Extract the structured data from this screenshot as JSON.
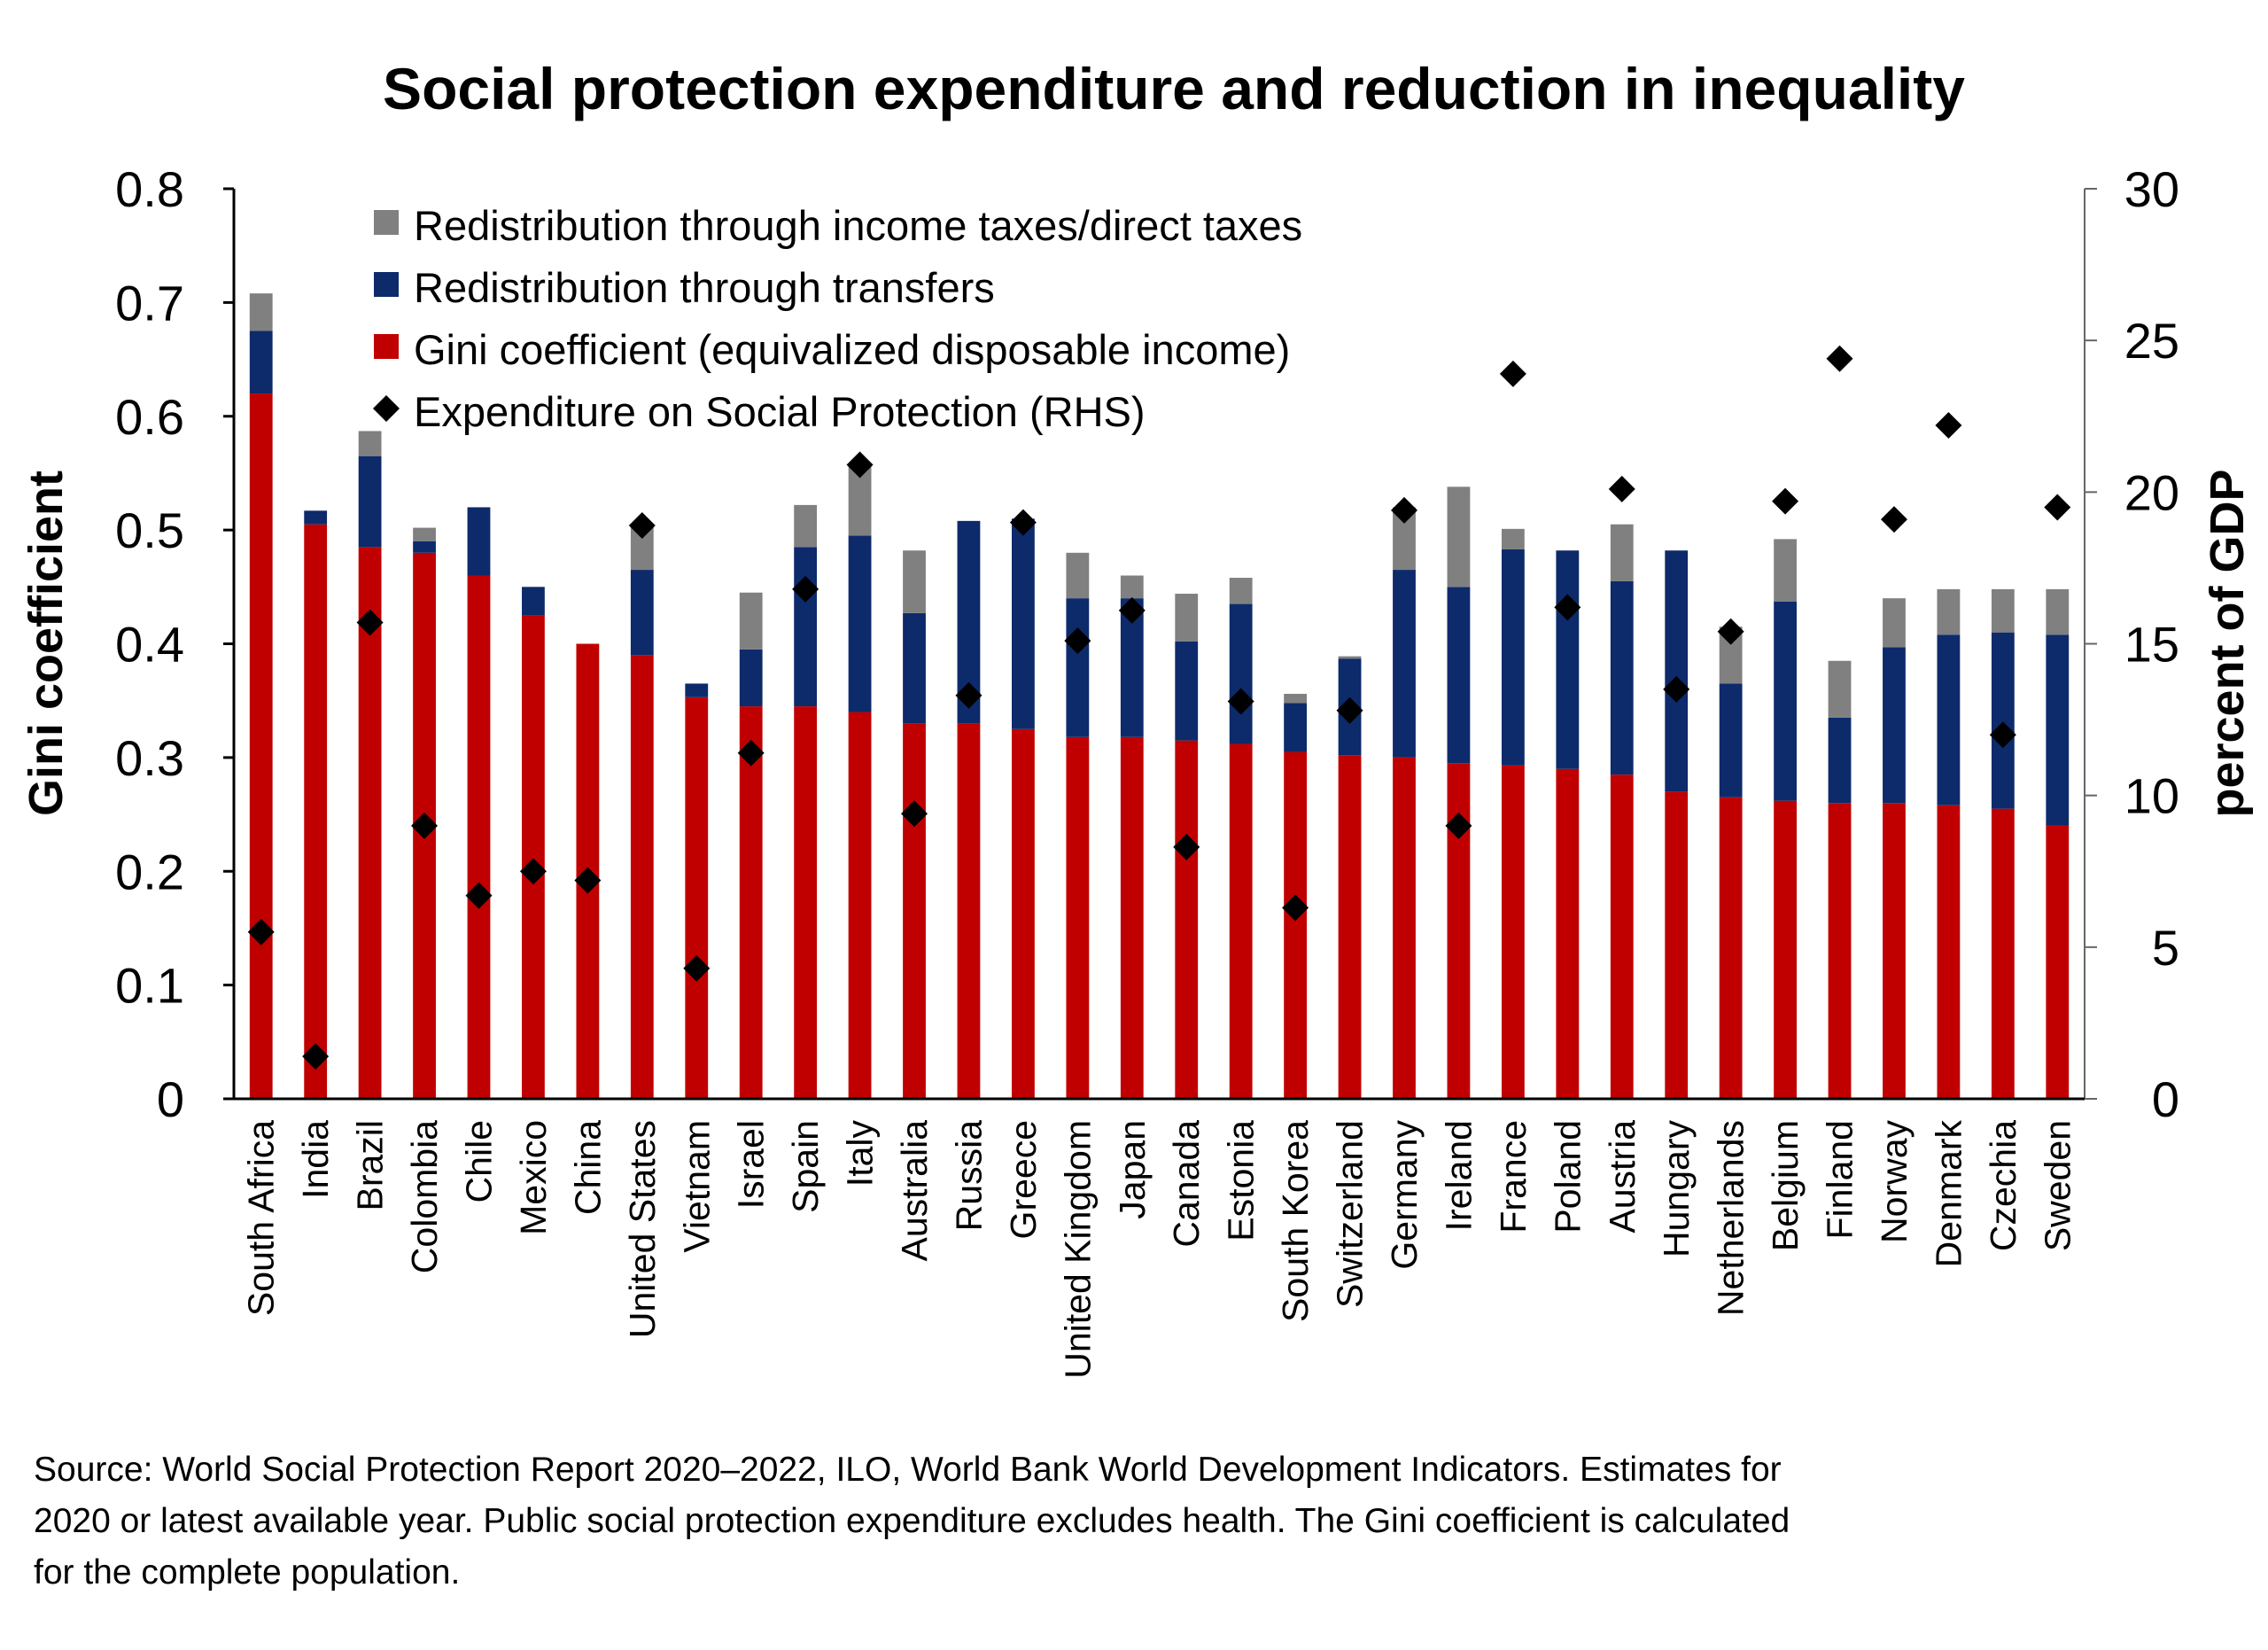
{
  "chart_data": {
    "type": "bar",
    "title": "Social protection expenditure and reduction in inequality",
    "ylabel": "Gini coefficient",
    "y2label": "percent of GDP",
    "ylim": [
      0,
      0.8
    ],
    "y_ticks": [
      "0",
      "0.1",
      "0.2",
      "0.3",
      "0.4",
      "0.5",
      "0.6",
      "0.7",
      "0.8"
    ],
    "y2lim": [
      0,
      30
    ],
    "y2_ticks": [
      "0",
      "5",
      "10",
      "15",
      "20",
      "25",
      "30"
    ],
    "legend_position": "top",
    "grid": false,
    "stacked": true,
    "categories": [
      "South Africa",
      "India",
      "Brazil",
      "Colombia",
      "Chile",
      "Mexico",
      "China",
      "United States",
      "Vietnam",
      "Israel",
      "Spain",
      "Italy",
      "Australia",
      "Russia",
      "Greece",
      "United Kingdom",
      "Japan",
      "Canada",
      "Estonia",
      "South Korea",
      "Switzerland",
      "Germany",
      "Ireland",
      "France",
      "Poland",
      "Austria",
      "Hungary",
      "Netherlands",
      "Belgium",
      "Finland",
      "Norway",
      "Denmark",
      "Czechia",
      "Sweden"
    ],
    "series": [
      {
        "name": "Gini coefficient (equivalized disposable income)",
        "kind": "bar",
        "color": "#c00000",
        "values": [
          0.62,
          0.505,
          0.485,
          0.48,
          0.46,
          0.425,
          0.4,
          0.39,
          0.353,
          0.345,
          0.345,
          0.34,
          0.33,
          0.33,
          0.325,
          0.318,
          0.318,
          0.315,
          0.312,
          0.305,
          0.302,
          0.3,
          0.295,
          0.293,
          0.29,
          0.285,
          0.27,
          0.265,
          0.262,
          0.26,
          0.26,
          0.258,
          0.255,
          0.24
        ]
      },
      {
        "name": "Redistribution through transfers",
        "kind": "bar",
        "color": "#0d2a6b",
        "values": [
          0.055,
          0.012,
          0.08,
          0.01,
          0.06,
          0.025,
          0,
          0.075,
          0.012,
          0.05,
          0.14,
          0.155,
          0.097,
          0.178,
          0.185,
          0.122,
          0.122,
          0.087,
          0.123,
          0.043,
          0.085,
          0.165,
          0.155,
          0.19,
          0.192,
          0.17,
          0.212,
          0.1,
          0.175,
          0.075,
          0.137,
          0.15,
          0.155,
          0.168
        ]
      },
      {
        "name": "Redistribution through income taxes/direct taxes",
        "kind": "bar",
        "color": "#808080",
        "values": [
          0.033,
          0,
          0.022,
          0.012,
          0,
          0,
          0,
          0.04,
          0,
          0.05,
          0.037,
          0.061,
          0.055,
          0,
          0,
          0.04,
          0.02,
          0.042,
          0.023,
          0.008,
          0.002,
          0.055,
          0.088,
          0.018,
          0,
          0.05,
          0,
          0.05,
          0.055,
          0.05,
          0.043,
          0.04,
          0.038,
          0.04
        ]
      },
      {
        "name": "Expenditure on Social Protection (RHS)",
        "kind": "marker",
        "axis": "right",
        "color": "#000000",
        "values": [
          5.5,
          1.4,
          15.7,
          9.0,
          6.7,
          7.5,
          7.2,
          18.9,
          4.3,
          11.4,
          16.8,
          20.9,
          9.4,
          13.3,
          19.0,
          15.1,
          16.1,
          8.3,
          13.1,
          6.3,
          12.8,
          19.4,
          9.0,
          23.9,
          16.2,
          20.1,
          13.5,
          15.4,
          19.7,
          24.4,
          19.1,
          22.2,
          12.0,
          19.5
        ]
      }
    ]
  },
  "footer": {
    "source_line1": "Source: World Social Protection Report 2020–2022, ILO, World Bank World Development Indicators. Estimates for",
    "source_line2": "2020 or latest available year. Public social protection expenditure excludes health. The Gini coefficient is calculated",
    "source_line3": "for the complete population."
  }
}
